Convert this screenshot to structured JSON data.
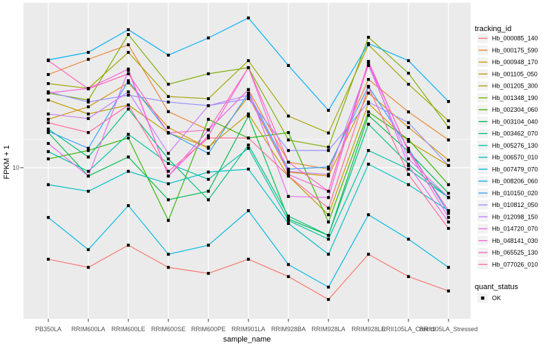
{
  "figure": {
    "y_axis": {
      "title": "FPKM + 1",
      "tick_label": "10"
    },
    "x_axis": {
      "title": "sample_name"
    },
    "legend": {
      "tracking_title": "tracking_id",
      "quant_title": "quant_status",
      "quant_items": [
        {
          "label": "OK",
          "marker": "black-square"
        }
      ]
    },
    "colors": {
      "panel_bg": "#EBEBEB",
      "grid": "#FFFFFF",
      "tick_text": "#4D4D4D",
      "title_text": "#000000",
      "legend_key_bg": "#F2F2F2",
      "marker": "#000000"
    }
  },
  "chart_data": {
    "type": "line",
    "title": "",
    "xlabel": "sample_name",
    "ylabel": "FPKM + 1",
    "y_scale": "log10",
    "y_ticks": [
      10
    ],
    "ylim": [
      1.2,
      95
    ],
    "grid": "on",
    "legend_position": "right",
    "point_marker": "black-square",
    "categories": [
      "PB350LA",
      "RRIM600LA",
      "RRIM600LE",
      "RRIM600SE",
      "RRIM600PE",
      "RRIM901LA",
      "RRIM928BA",
      "RRIM928LA",
      "RRIM928LE",
      "RRII105LA_Control",
      "RRII105LA_Stressed"
    ],
    "series": [
      {
        "name": "Hb_000085_140",
        "color": "#F8766D",
        "quant_status": "OK",
        "values": [
          2.8,
          2.5,
          3.4,
          2.5,
          2.3,
          2.8,
          2.2,
          1.6,
          3.0,
          2.2,
          1.8
        ]
      },
      {
        "name": "Hb_000175_590",
        "color": "#EA8331",
        "quant_status": "OK",
        "values": [
          36.5,
          45.1,
          55.2,
          21.8,
          16.9,
          29.6,
          10.8,
          9.8,
          34.1,
          21.7,
          14.7
        ]
      },
      {
        "name": "Hb_000948_170",
        "color": "#D89000",
        "quant_status": "OK",
        "values": [
          19.6,
          23.3,
          32.5,
          17.5,
          13.1,
          26.9,
          9.4,
          8.9,
          28.2,
          17.5,
          11.1
        ]
      },
      {
        "name": "Hb_001105_050",
        "color": "#C09B00",
        "quant_status": "OK",
        "values": [
          25.6,
          21.1,
          23.9,
          16.2,
          13.3,
          21.1,
          8.9,
          5.2,
          24.4,
          14.4,
          10.3
        ]
      },
      {
        "name": "Hb_001205_300",
        "color": "#A3A500",
        "quant_status": "OK",
        "values": [
          32.2,
          30.1,
          49.7,
          26.9,
          26.1,
          44.3,
          20.5,
          16.2,
          55.2,
          31.9,
          19.2
        ]
      },
      {
        "name": "Hb_001348_190",
        "color": "#7CAE00",
        "quant_status": "OK",
        "values": [
          28.2,
          25.6,
          63.7,
          31.9,
          36.9,
          40.2,
          14.7,
          13.3,
          61.3,
          37.2,
          17.5
        ]
      },
      {
        "name": "Hb_002304_060",
        "color": "#39B600",
        "quant_status": "OK",
        "values": [
          11.3,
          12.7,
          15.1,
          4.8,
          19.6,
          15.1,
          16.3,
          4.7,
          21.7,
          14.8,
          7.9
        ]
      },
      {
        "name": "Hb_003104_040",
        "color": "#00BB4E",
        "quant_status": "OK",
        "values": [
          16.3,
          8.9,
          11.6,
          6.4,
          7.2,
          20.5,
          4.9,
          3.9,
          20.7,
          12.5,
          7.0
        ]
      },
      {
        "name": "Hb_003462_070",
        "color": "#00BF7D",
        "quant_status": "OK",
        "values": [
          17.1,
          11.6,
          22.6,
          11.3,
          6.4,
          13.7,
          5.1,
          3.9,
          18.3,
          10.5,
          6.6
        ]
      },
      {
        "name": "Hb_005276_130",
        "color": "#00C1A3",
        "quant_status": "OK",
        "values": [
          12.5,
          9.5,
          15.9,
          10.6,
          8.5,
          13.1,
          4.8,
          3.7,
          12.7,
          9.8,
          6.6
        ]
      },
      {
        "name": "Hb_006570_010",
        "color": "#00BFC4",
        "quant_status": "OK",
        "values": [
          7.9,
          7.2,
          9.5,
          8.0,
          9.4,
          9.8,
          4.6,
          3.0,
          10.5,
          7.9,
          5.5
        ]
      },
      {
        "name": "Hb_007479_070",
        "color": "#00BAE0",
        "quant_status": "OK",
        "values": [
          5.0,
          3.2,
          5.9,
          3.0,
          3.4,
          5.5,
          2.6,
          1.9,
          5.2,
          3.7,
          2.5
        ]
      },
      {
        "name": "Hb_008206_060",
        "color": "#00B0F6",
        "quant_status": "OK",
        "values": [
          44.7,
          49.7,
          68.1,
          47.8,
          60.7,
          80.2,
          41.4,
          22.2,
          56.2,
          44.3,
          25.1
        ]
      },
      {
        "name": "Hb_010150_020",
        "color": "#35A2FF",
        "quant_status": "OK",
        "values": [
          16.6,
          13.1,
          33.5,
          16.3,
          12.2,
          28.2,
          9.8,
          10.1,
          31.0,
          13.1,
          5.3
        ]
      },
      {
        "name": "Hb_010812_050",
        "color": "#9590FF",
        "quant_status": "OK",
        "values": [
          28.7,
          24.9,
          27.4,
          24.9,
          23.7,
          26.1,
          12.7,
          12.7,
          24.9,
          18.7,
          10.3
        ]
      },
      {
        "name": "Hb_012098_150",
        "color": "#C77CFF",
        "quant_status": "OK",
        "values": [
          21.1,
          19.8,
          28.7,
          12.2,
          23.7,
          27.4,
          9.5,
          9.1,
          41.4,
          11.3,
          6.6
        ]
      },
      {
        "name": "Hb_014720_070",
        "color": "#E76BF3",
        "quant_status": "OK",
        "values": [
          14.0,
          8.9,
          38.7,
          8.9,
          16.9,
          29.6,
          6.7,
          6.6,
          43.4,
          10.3,
          4.7
        ]
      },
      {
        "name": "Hb_048141_030",
        "color": "#FA62DB",
        "quant_status": "OK",
        "values": [
          28.2,
          30.1,
          39.4,
          8.9,
          15.6,
          40.2,
          9.1,
          7.2,
          43.8,
          12.5,
          5.0
        ]
      },
      {
        "name": "Hb_065525_130",
        "color": "#FF62BC",
        "quant_status": "OK",
        "values": [
          44.3,
          29.9,
          36.9,
          16.2,
          16.9,
          40.2,
          10.8,
          7.2,
          42.6,
          12.7,
          5.5
        ]
      },
      {
        "name": "Hb_077026_010",
        "color": "#FF6A98",
        "quant_status": "OK",
        "values": [
          18.7,
          16.3,
          23.9,
          9.5,
          15.1,
          15.1,
          8.9,
          5.7,
          30.7,
          9.1,
          4.3
        ]
      }
    ]
  }
}
